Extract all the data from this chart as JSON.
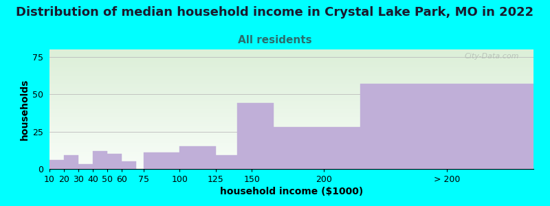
{
  "title": "Distribution of median household income in Crystal Lake Park, MO in 2022",
  "subtitle": "All residents",
  "xlabel": "household income ($1000)",
  "ylabel": "households",
  "background_color": "#00FFFF",
  "plot_bg_top_color": "#dcefd8",
  "plot_bg_bottom_color": "#f8fdf8",
  "bar_color": "#c0afd8",
  "bar_edge_color": "#c0afd8",
  "categories": [
    "10",
    "20",
    "30",
    "40",
    "50",
    "60",
    "75",
    "100",
    "125",
    "150",
    "200",
    "> 200"
  ],
  "values": [
    6,
    9,
    3,
    12,
    10,
    5,
    11,
    15,
    9,
    44,
    28,
    57
  ],
  "positions": [
    10,
    20,
    30,
    40,
    50,
    60,
    75,
    100,
    125,
    140,
    160,
    225
  ],
  "widths": [
    10,
    10,
    10,
    10,
    10,
    10,
    25,
    25,
    15,
    25,
    65,
    120
  ],
  "xtick_positions": [
    10,
    20,
    30,
    40,
    50,
    60,
    75,
    100,
    125,
    150,
    200,
    285
  ],
  "ylim": [
    0,
    80
  ],
  "xlim_left": 10,
  "xlim_right": 345,
  "yticks": [
    0,
    25,
    50,
    75
  ],
  "title_fontsize": 13,
  "subtitle_fontsize": 11,
  "label_fontsize": 10,
  "tick_fontsize": 9,
  "watermark": "City-Data.com"
}
